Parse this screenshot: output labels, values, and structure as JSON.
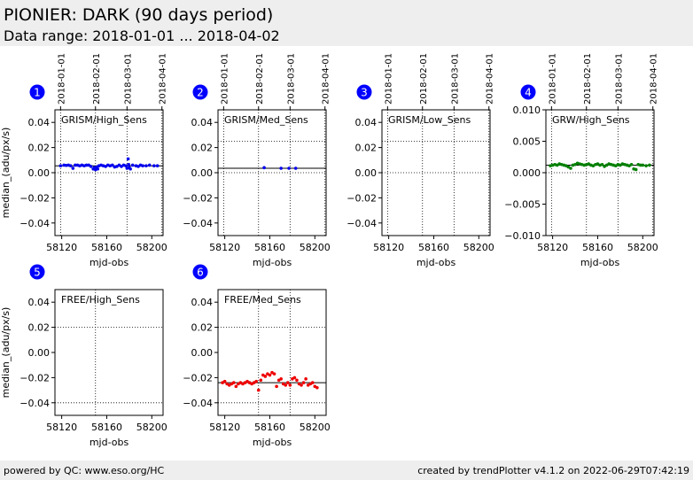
{
  "header": {
    "title": "PIONIER: DARK (90 days period)",
    "subtitle": "Data range: 2018-01-01 ... 2018-04-02"
  },
  "footer": {
    "left": "powered by QC: www.eso.org/HC",
    "right": "created by trendPlotter v4.1.2 on 2022-06-29T07:42:19"
  },
  "colors": {
    "blue": "#0000ee",
    "green": "#008000",
    "red": "#ee0000",
    "badge": "#0000ff",
    "header_bg": "#eeeeee"
  },
  "chart_data": [
    {
      "type": "scatter",
      "id": "1",
      "label": "GRISM/High_Sens",
      "xlabel": "mjd-obs",
      "ylabel": "median_(adu/px/s)",
      "xlim": [
        58114,
        58210
      ],
      "ylim": [
        -0.05,
        0.05
      ],
      "xticks": [
        58120,
        58160,
        58200
      ],
      "yticks": [
        0.04,
        0.02,
        0.0,
        -0.02,
        -0.04
      ],
      "yticklabels": [
        "0.04",
        "0.02",
        "0.00",
        "−0.02",
        "−0.04"
      ],
      "top_dates": [
        "2018-01-01",
        "2018-02-01",
        "2018-03-01",
        "2018-04-01"
      ],
      "top_date_mjd": [
        58119,
        58150,
        58178,
        58209
      ],
      "ref_line": 0.0055,
      "upper_limit": 0.025,
      "lower_limit": 0.0,
      "color": "#0000ee",
      "points": [
        [
          58119,
          0.0055
        ],
        [
          58122,
          0.006
        ],
        [
          58124,
          0.0058
        ],
        [
          58126,
          0.006
        ],
        [
          58128,
          0.0055
        ],
        [
          58130,
          0.0035
        ],
        [
          58132,
          0.006
        ],
        [
          58134,
          0.006
        ],
        [
          58136,
          0.0055
        ],
        [
          58138,
          0.006
        ],
        [
          58140,
          0.0055
        ],
        [
          58142,
          0.006
        ],
        [
          58144,
          0.006
        ],
        [
          58146,
          0.005
        ],
        [
          58148,
          0.003
        ],
        [
          58149,
          0.004
        ],
        [
          58150,
          0.0025
        ],
        [
          58151,
          0.0045
        ],
        [
          58152,
          0.003
        ],
        [
          58153,
          0.0055
        ],
        [
          58155,
          0.006
        ],
        [
          58157,
          0.0055
        ],
        [
          58159,
          0.005
        ],
        [
          58161,
          0.006
        ],
        [
          58163,
          0.0055
        ],
        [
          58165,
          0.006
        ],
        [
          58167,
          0.0045
        ],
        [
          58169,
          0.005
        ],
        [
          58171,
          0.006
        ],
        [
          58173,
          0.005
        ],
        [
          58175,
          0.006
        ],
        [
          58177,
          0.0055
        ],
        [
          58178,
          0.0035
        ],
        [
          58179,
          0.011
        ],
        [
          58179.5,
          0.0065
        ],
        [
          58180,
          0.004
        ],
        [
          58181,
          0.003
        ],
        [
          58183,
          0.006
        ],
        [
          58186,
          0.0055
        ],
        [
          58188,
          0.005
        ],
        [
          58190,
          0.006
        ],
        [
          58192,
          0.0055
        ],
        [
          58195,
          0.0055
        ],
        [
          58198,
          0.006
        ],
        [
          58202,
          0.0055
        ],
        [
          58205,
          0.0055
        ]
      ]
    },
    {
      "type": "scatter",
      "id": "2",
      "label": "GRISM/Med_Sens",
      "xlabel": "mjd-obs",
      "ylabel": "",
      "xlim": [
        58114,
        58210
      ],
      "ylim": [
        -0.05,
        0.05
      ],
      "xticks": [
        58120,
        58160,
        58200
      ],
      "yticks": [
        0.04,
        0.02,
        0.0,
        -0.02,
        -0.04
      ],
      "yticklabels": [
        "0.04",
        "0.02",
        "0.00",
        "−0.02",
        "−0.04"
      ],
      "top_dates": [
        "2018-01-01",
        "2018-02-01",
        "2018-03-01",
        "2018-04-01"
      ],
      "top_date_mjd": [
        58119,
        58150,
        58178,
        58209
      ],
      "ref_line": 0.0035,
      "upper_limit": 0.025,
      "lower_limit": 0.0,
      "color": "#0000ee",
      "points": [
        [
          58155,
          0.004
        ],
        [
          58170,
          0.0035
        ],
        [
          58177,
          0.0035
        ],
        [
          58183,
          0.0035
        ]
      ]
    },
    {
      "type": "scatter",
      "id": "3",
      "label": "GRISM/Low_Sens",
      "xlabel": "mjd-obs",
      "ylabel": "",
      "xlim": [
        58114,
        58210
      ],
      "ylim": [
        -0.05,
        0.05
      ],
      "xticks": [
        58120,
        58160,
        58200
      ],
      "yticks": [
        0.04,
        0.02,
        0.0,
        -0.02,
        -0.04
      ],
      "yticklabels": [
        "0.04",
        "0.02",
        "0.00",
        "−0.02",
        "−0.04"
      ],
      "top_dates": [
        "2018-01-01",
        "2018-02-01",
        "2018-03-01",
        "2018-04-01"
      ],
      "top_date_mjd": [
        58119,
        58150,
        58178,
        58209
      ],
      "ref_line": null,
      "upper_limit": 0.025,
      "lower_limit": 0.0,
      "color": "#0000ee",
      "points": []
    },
    {
      "type": "scatter",
      "id": "4",
      "label": "GRW/High_Sens",
      "xlabel": "mjd-obs",
      "ylabel": "",
      "xlim": [
        58114,
        58210
      ],
      "ylim": [
        -0.01,
        0.01
      ],
      "xticks": [
        58120,
        58160,
        58200
      ],
      "yticks": [
        0.01,
        0.005,
        0.0,
        -0.005,
        -0.01
      ],
      "yticklabels": [
        "0.010",
        "0.005",
        "0.000",
        "−0.005",
        "−0.010"
      ],
      "top_dates": [
        "2018-01-01",
        "2018-02-01",
        "2018-03-01",
        "2018-04-01"
      ],
      "top_date_mjd": [
        58119,
        58150,
        58178,
        58209
      ],
      "ref_line": 0.0012,
      "upper_limit": 0.01,
      "lower_limit": 0.0,
      "color": "#008000",
      "points": [
        [
          58118,
          0.0011
        ],
        [
          58120,
          0.0012
        ],
        [
          58122,
          0.0013
        ],
        [
          58124,
          0.0012
        ],
        [
          58126,
          0.0014
        ],
        [
          58128,
          0.0013
        ],
        [
          58130,
          0.0012
        ],
        [
          58132,
          0.0011
        ],
        [
          58134,
          0.0009
        ],
        [
          58136,
          0.0007
        ],
        [
          58138,
          0.0012
        ],
        [
          58140,
          0.0013
        ],
        [
          58142,
          0.0015
        ],
        [
          58144,
          0.0014
        ],
        [
          58146,
          0.0013
        ],
        [
          58148,
          0.0012
        ],
        [
          58150,
          0.0013
        ],
        [
          58152,
          0.0014
        ],
        [
          58154,
          0.0012
        ],
        [
          58156,
          0.0011
        ],
        [
          58158,
          0.0013
        ],
        [
          58160,
          0.0014
        ],
        [
          58162,
          0.0012
        ],
        [
          58164,
          0.0013
        ],
        [
          58166,
          0.001
        ],
        [
          58168,
          0.0012
        ],
        [
          58170,
          0.0014
        ],
        [
          58172,
          0.0013
        ],
        [
          58174,
          0.0012
        ],
        [
          58176,
          0.0011
        ],
        [
          58178,
          0.0013
        ],
        [
          58180,
          0.0012
        ],
        [
          58182,
          0.0014
        ],
        [
          58184,
          0.0013
        ],
        [
          58186,
          0.0012
        ],
        [
          58188,
          0.0011
        ],
        [
          58190,
          0.0013
        ],
        [
          58192,
          0.0006
        ],
        [
          58194,
          0.0005
        ],
        [
          58196,
          0.0013
        ],
        [
          58198,
          0.0012
        ],
        [
          58200,
          0.0012
        ],
        [
          58203,
          0.0011
        ],
        [
          58206,
          0.0012
        ]
      ]
    },
    {
      "type": "scatter",
      "id": "5",
      "label": "FREE/High_Sens",
      "xlabel": "mjd-obs",
      "ylabel": "median_(adu/px/s)",
      "xlim": [
        58114,
        58210
      ],
      "ylim": [
        -0.05,
        0.05
      ],
      "xticks": [
        58120,
        58160,
        58200
      ],
      "yticks": [
        0.04,
        0.02,
        0.0,
        -0.02,
        -0.04
      ],
      "yticklabels": [
        "0.04",
        "0.02",
        "0.00",
        "−0.02",
        "−0.04"
      ],
      "top_dates": [],
      "top_date_mjd": [
        58150
      ],
      "ref_line": null,
      "upper_limit": 0.02,
      "lower_limit": -0.04,
      "color": "#0000ee",
      "points": []
    },
    {
      "type": "scatter",
      "id": "6",
      "label": "FREE/Med_Sens",
      "xlabel": "mjd-obs",
      "ylabel": "",
      "xlim": [
        58114,
        58210
      ],
      "ylim": [
        -0.05,
        0.05
      ],
      "xticks": [
        58120,
        58160,
        58200
      ],
      "yticks": [
        0.04,
        0.02,
        0.0,
        -0.02,
        -0.04
      ],
      "yticklabels": [
        "0.04",
        "0.02",
        "0.00",
        "−0.02",
        "−0.04"
      ],
      "top_dates": [],
      "top_date_mjd": [
        58150,
        58178
      ],
      "ref_line": -0.024,
      "upper_limit": 0.02,
      "lower_limit": -0.04,
      "color": "#ee0000",
      "points": [
        [
          58118,
          -0.024
        ],
        [
          58120,
          -0.023
        ],
        [
          58122,
          -0.025
        ],
        [
          58124,
          -0.026
        ],
        [
          58126,
          -0.025
        ],
        [
          58128,
          -0.024
        ],
        [
          58130,
          -0.027
        ],
        [
          58132,
          -0.025
        ],
        [
          58134,
          -0.024
        ],
        [
          58136,
          -0.025
        ],
        [
          58138,
          -0.024
        ],
        [
          58140,
          -0.023
        ],
        [
          58142,
          -0.024
        ],
        [
          58144,
          -0.025
        ],
        [
          58146,
          -0.024
        ],
        [
          58148,
          -0.023
        ],
        [
          58150,
          -0.03
        ],
        [
          58152,
          -0.022
        ],
        [
          58154,
          -0.018
        ],
        [
          58156,
          -0.019
        ],
        [
          58158,
          -0.017
        ],
        [
          58160,
          -0.018
        ],
        [
          58162,
          -0.016
        ],
        [
          58164,
          -0.017
        ],
        [
          58166,
          -0.027
        ],
        [
          58168,
          -0.022
        ],
        [
          58170,
          -0.021
        ],
        [
          58172,
          -0.025
        ],
        [
          58174,
          -0.026
        ],
        [
          58176,
          -0.024
        ],
        [
          58178,
          -0.026
        ],
        [
          58180,
          -0.021
        ],
        [
          58182,
          -0.02
        ],
        [
          58184,
          -0.022
        ],
        [
          58186,
          -0.025
        ],
        [
          58188,
          -0.026
        ],
        [
          58190,
          -0.024
        ],
        [
          58192,
          -0.021
        ],
        [
          58194,
          -0.026
        ],
        [
          58196,
          -0.025
        ],
        [
          58198,
          -0.024
        ],
        [
          58200,
          -0.027
        ],
        [
          58202,
          -0.028
        ]
      ]
    }
  ]
}
